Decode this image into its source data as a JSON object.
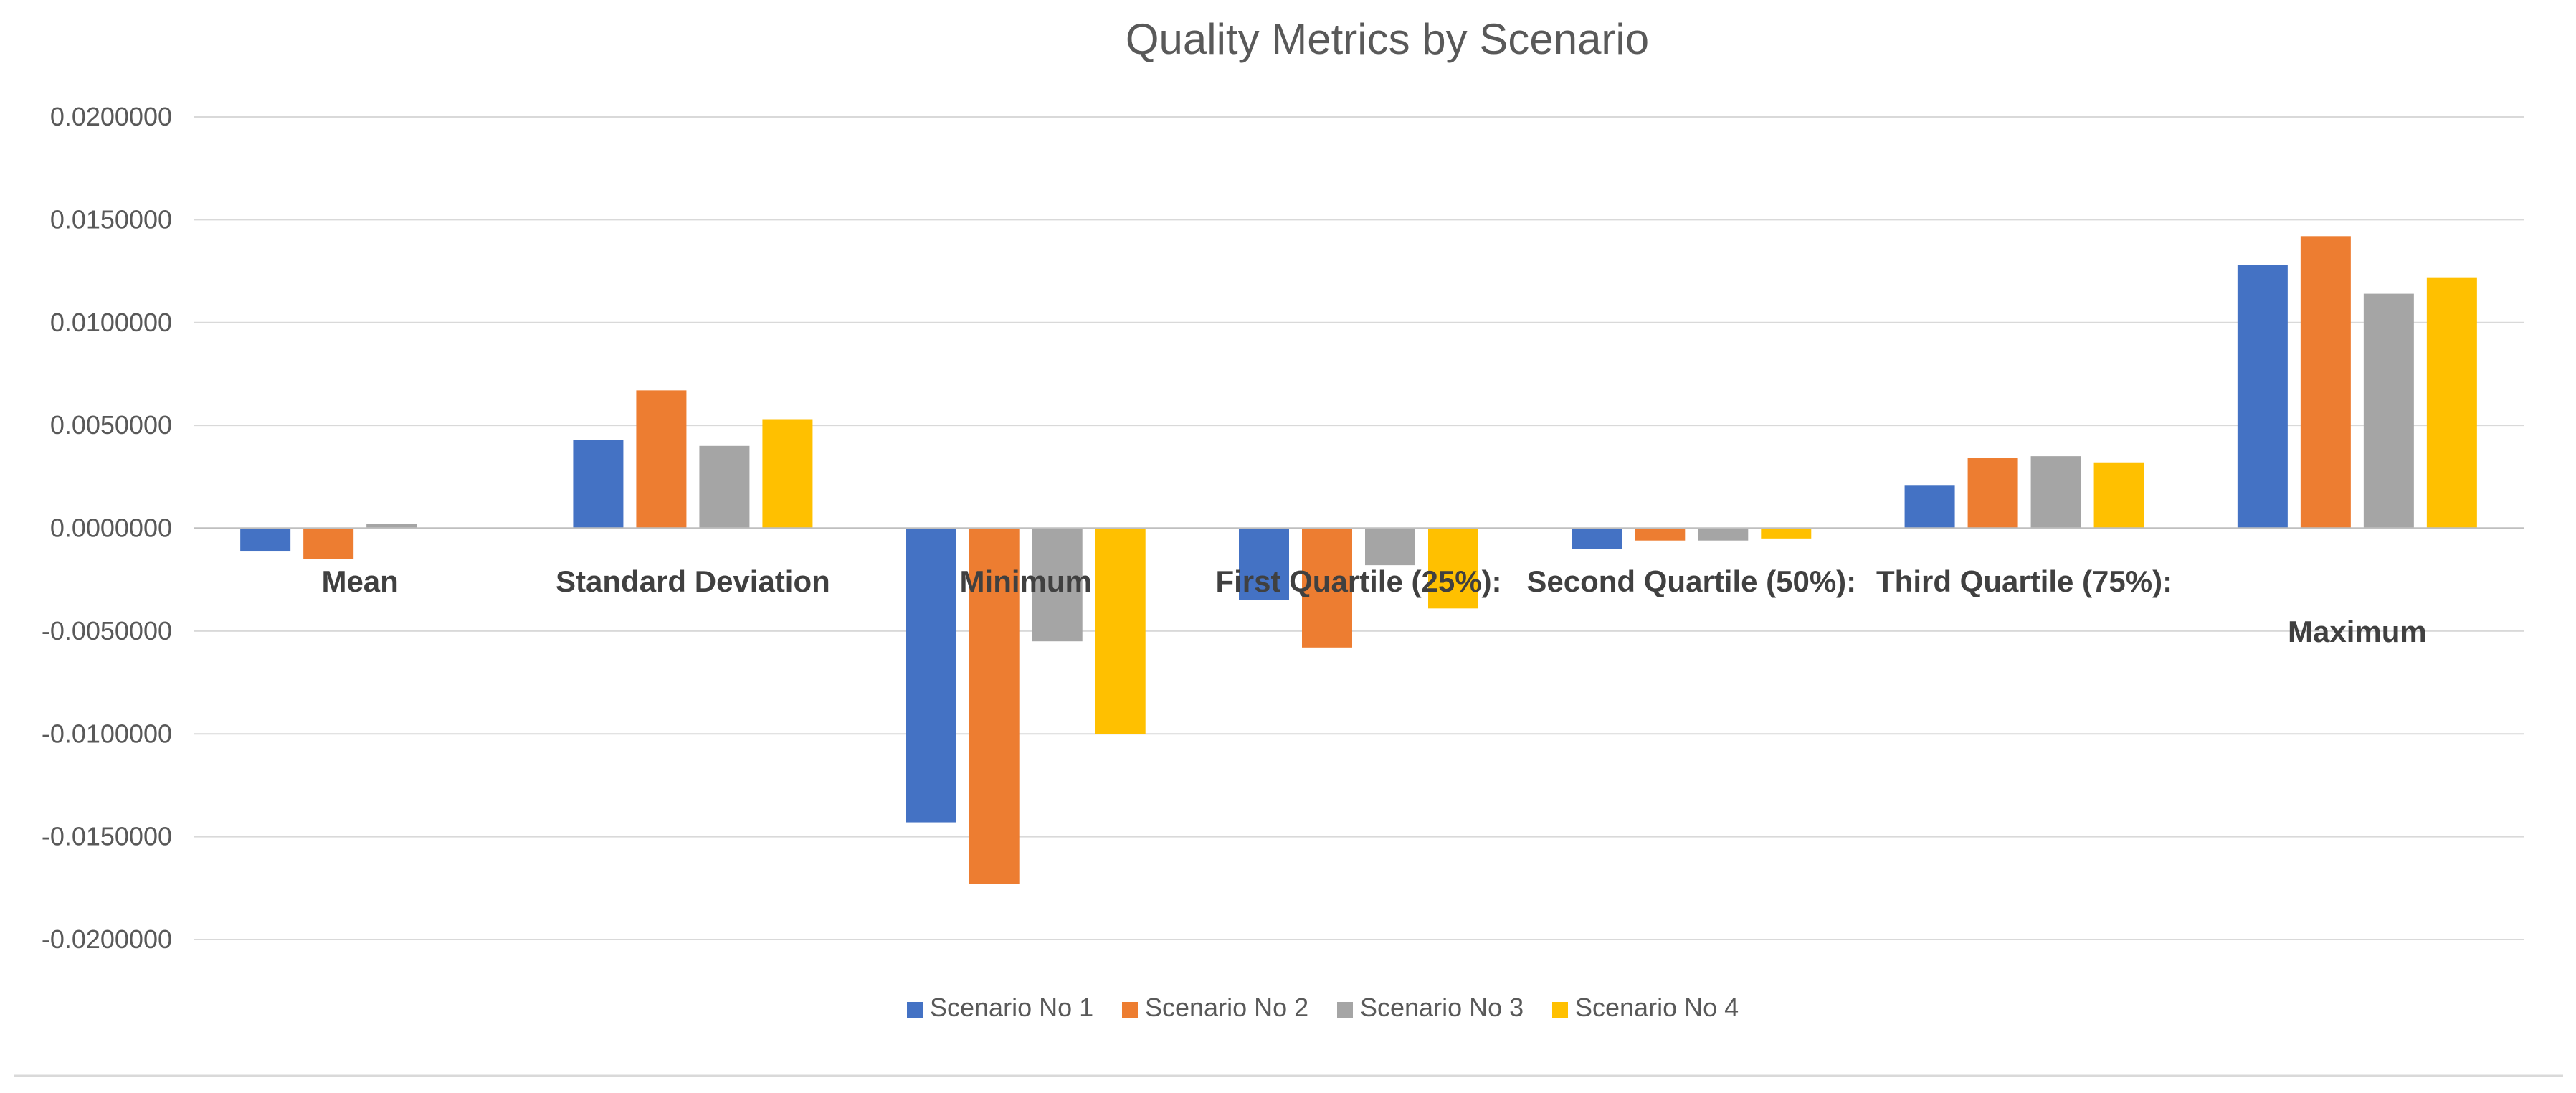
{
  "chart_data": {
    "type": "bar",
    "title": "Quality Metrics by Scenario",
    "xlabel": "",
    "ylabel": "",
    "ylim": [
      -0.02,
      0.02
    ],
    "ytick_values": [
      0.02,
      0.015,
      0.01,
      0.005,
      0.0,
      -0.005,
      -0.01,
      -0.015,
      -0.02
    ],
    "ytick_labels": [
      "0.0200000",
      "0.0150000",
      "0.0100000",
      "0.0050000",
      "0.0000000",
      "-0.0050000",
      "-0.0100000",
      "-0.0150000",
      "-0.0200000"
    ],
    "grid": true,
    "legend_position": "bottom",
    "categories": [
      "Mean",
      "Standard Deviation",
      "Minimum",
      "First Quartile (25%):",
      "Second Quartile (50%):",
      "Third Quartile (75%):",
      "Maximum"
    ],
    "series": [
      {
        "name": "Scenario No 1",
        "color": "#4472c4",
        "values": [
          -0.0011,
          0.0043,
          -0.0143,
          -0.0035,
          -0.001,
          0.0021,
          0.0128
        ]
      },
      {
        "name": "Scenario No 2",
        "color": "#ed7d31",
        "values": [
          -0.0015,
          0.0067,
          -0.0173,
          -0.0058,
          -0.0006,
          0.0034,
          0.0142
        ]
      },
      {
        "name": "Scenario No 3",
        "color": "#a5a5a5",
        "values": [
          0.0002,
          0.004,
          -0.0055,
          -0.0018,
          -0.0006,
          0.0035,
          0.0114
        ]
      },
      {
        "name": "Scenario No 4",
        "color": "#ffc000",
        "values": [
          0.0,
          0.0053,
          -0.01,
          -0.0039,
          -0.0005,
          0.0032,
          0.0122
        ]
      }
    ]
  }
}
